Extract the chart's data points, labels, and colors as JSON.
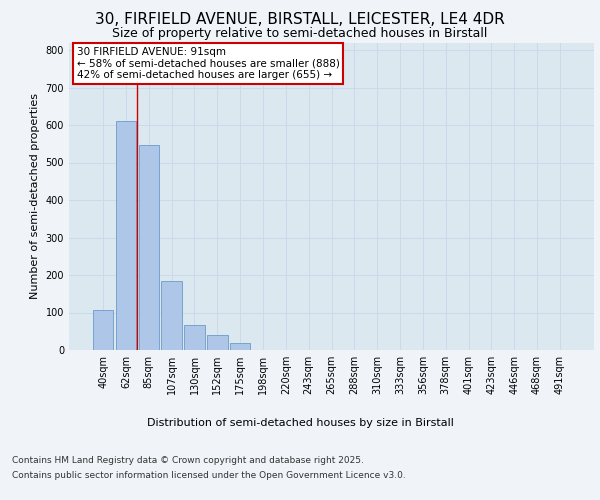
{
  "title_line1": "30, FIRFIELD AVENUE, BIRSTALL, LEICESTER, LE4 4DR",
  "title_line2": "Size of property relative to semi-detached houses in Birstall",
  "xlabel": "Distribution of semi-detached houses by size in Birstall",
  "ylabel": "Number of semi-detached properties",
  "categories": [
    "40sqm",
    "62sqm",
    "85sqm",
    "107sqm",
    "130sqm",
    "152sqm",
    "175sqm",
    "198sqm",
    "220sqm",
    "243sqm",
    "265sqm",
    "288sqm",
    "310sqm",
    "333sqm",
    "356sqm",
    "378sqm",
    "401sqm",
    "423sqm",
    "446sqm",
    "468sqm",
    "491sqm"
  ],
  "values": [
    107,
    612,
    548,
    185,
    68,
    40,
    18,
    0,
    0,
    0,
    0,
    0,
    0,
    0,
    0,
    0,
    0,
    0,
    0,
    0,
    0
  ],
  "bar_color": "#aec6e8",
  "bar_edge_color": "#5a8fc0",
  "annotation_text_line1": "30 FIRFIELD AVENUE: 91sqm",
  "annotation_text_line2": "← 58% of semi-detached houses are smaller (888)",
  "annotation_text_line3": "42% of semi-detached houses are larger (655) →",
  "annotation_box_color": "#ffffff",
  "annotation_box_edge": "#cc0000",
  "vline_color": "#cc0000",
  "vline_x": 1.5,
  "ylim": [
    0,
    820
  ],
  "yticks": [
    0,
    100,
    200,
    300,
    400,
    500,
    600,
    700,
    800
  ],
  "grid_color": "#c8d8ea",
  "bg_color": "#dce8f0",
  "fig_bg_color": "#f0f4f8",
  "footer_line1": "Contains HM Land Registry data © Crown copyright and database right 2025.",
  "footer_line2": "Contains public sector information licensed under the Open Government Licence v3.0.",
  "title_fontsize": 11,
  "subtitle_fontsize": 9,
  "axis_label_fontsize": 8,
  "tick_fontsize": 7,
  "footer_fontsize": 6.5,
  "annot_fontsize": 7.5
}
